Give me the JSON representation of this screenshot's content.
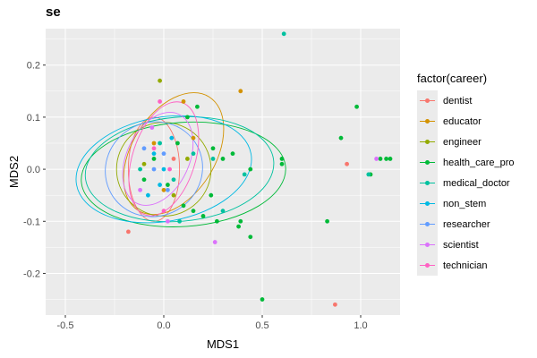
{
  "chart_data": {
    "type": "scatter",
    "title": "se",
    "xlabel": "MDS1",
    "ylabel": "MDS2",
    "xlim": [
      -0.6,
      1.2
    ],
    "ylim": [
      -0.28,
      0.27
    ],
    "x_ticks": [
      -0.5,
      0.0,
      0.5,
      1.0
    ],
    "x_tick_labels": [
      "-0.5",
      "0.0",
      "0.5",
      "1.0"
    ],
    "y_ticks": [
      -0.2,
      -0.1,
      0.0,
      0.1,
      0.2
    ],
    "y_tick_labels": [
      "-0.2",
      "-0.1",
      "0.0",
      "0.1",
      "0.2"
    ],
    "grid": true,
    "panel_background": "#ebebeb",
    "legend_title": "factor(career)",
    "legend_position": "right",
    "series": [
      {
        "name": "dentist",
        "color": "#F8766D",
        "points": [
          [
            0.93,
            0.01
          ],
          [
            0.87,
            -0.26
          ],
          [
            -0.18,
            -0.12
          ],
          [
            0.05,
            0.02
          ]
        ],
        "ellipse": {
          "cx": -0.05,
          "cy": 0.0,
          "rx": 0.13,
          "ry": 0.1,
          "angle": 0
        }
      },
      {
        "name": "educator",
        "color": "#D39200",
        "points": [
          [
            0.39,
            0.15
          ],
          [
            0.1,
            0.13
          ],
          [
            0.0,
            -0.04
          ],
          [
            0.15,
            0.06
          ],
          [
            -0.05,
            0.05
          ]
        ],
        "ellipse": {
          "cx": 0.05,
          "cy": 0.03,
          "rx": 0.34,
          "ry": 0.08,
          "angle": 58
        }
      },
      {
        "name": "engineer",
        "color": "#93AA00",
        "points": [
          [
            -0.02,
            0.17
          ],
          [
            0.12,
            0.02
          ],
          [
            0.05,
            -0.05
          ],
          [
            -0.1,
            0.01
          ]
        ],
        "ellipse": {
          "cx": 0.0,
          "cy": 0.0,
          "rx": 0.24,
          "ry": 0.09,
          "angle": 0
        }
      },
      {
        "name": "health_care_pro",
        "color": "#00BA38",
        "points": [
          [
            0.98,
            0.12
          ],
          [
            0.9,
            0.06
          ],
          [
            0.83,
            -0.1
          ],
          [
            0.5,
            -0.25
          ],
          [
            0.44,
            -0.13
          ],
          [
            0.44,
            0.0
          ],
          [
            0.6,
            0.01
          ],
          [
            0.6,
            0.02
          ],
          [
            0.3,
            0.02
          ],
          [
            0.24,
            -0.05
          ],
          [
            0.27,
            -0.1
          ],
          [
            0.39,
            -0.1
          ],
          [
            0.38,
            -0.11
          ],
          [
            0.2,
            -0.09
          ],
          [
            0.25,
            0.04
          ],
          [
            0.35,
            0.03
          ],
          [
            1.05,
            -0.01
          ],
          [
            1.1,
            0.02
          ],
          [
            1.13,
            0.02
          ],
          [
            1.15,
            0.02
          ],
          [
            0.17,
            0.12
          ],
          [
            0.12,
            0.1
          ],
          [
            0.1,
            -0.07
          ],
          [
            0.15,
            -0.08
          ],
          [
            -0.05,
            0.02
          ],
          [
            0.02,
            -0.03
          ],
          [
            0.07,
            0.05
          ],
          [
            -0.1,
            -0.02
          ]
        ],
        "ellipse": {
          "cx": 0.1,
          "cy": -0.01,
          "rx": 0.52,
          "ry": 0.1,
          "angle": 4
        }
      },
      {
        "name": "medical_doctor",
        "color": "#00C19F",
        "points": [
          [
            0.61,
            0.26
          ],
          [
            0.41,
            -0.01
          ],
          [
            0.3,
            -0.08
          ],
          [
            1.04,
            -0.01
          ],
          [
            0.25,
            0.02
          ],
          [
            -0.02,
            0.05
          ],
          [
            0.05,
            -0.02
          ],
          [
            -0.12,
            0.0
          ],
          [
            0.15,
            0.03
          ],
          [
            0.08,
            -0.1
          ]
        ],
        "ellipse": {
          "cx": 0.08,
          "cy": 0.0,
          "rx": 0.48,
          "ry": 0.1,
          "angle": 5
        }
      },
      {
        "name": "non_stem",
        "color": "#00B9E3",
        "points": [
          [
            0.0,
            0.0
          ],
          [
            -0.05,
            0.03
          ],
          [
            -0.08,
            -0.05
          ],
          [
            0.04,
            0.06
          ],
          [
            -0.02,
            -0.03
          ]
        ],
        "ellipse": {
          "cx": 0.0,
          "cy": 0.0,
          "rx": 0.45,
          "ry": 0.1,
          "angle": 10
        }
      },
      {
        "name": "researcher",
        "color": "#619CFF",
        "points": [
          [
            -0.05,
            0.0
          ],
          [
            0.02,
            -0.04
          ],
          [
            -0.1,
            0.04
          ],
          [
            0.0,
            0.03
          ]
        ],
        "ellipse": {
          "cx": -0.05,
          "cy": 0.0,
          "rx": 0.25,
          "ry": 0.09,
          "angle": 30
        }
      },
      {
        "name": "scientist",
        "color": "#DB72FB",
        "points": [
          [
            1.08,
            0.02
          ],
          [
            -0.06,
            0.08
          ],
          [
            0.02,
            -0.1
          ],
          [
            0.26,
            -0.14
          ],
          [
            -0.12,
            -0.04
          ]
        ],
        "ellipse": {
          "cx": -0.03,
          "cy": 0.02,
          "rx": 0.25,
          "ry": 0.06,
          "angle": 65
        }
      },
      {
        "name": "technician",
        "color": "#FF61C3",
        "points": [
          [
            -0.02,
            0.13
          ],
          [
            0.0,
            -0.08
          ],
          [
            -0.05,
            0.04
          ],
          [
            0.03,
            0.0
          ]
        ],
        "ellipse": {
          "cx": 0.0,
          "cy": 0.02,
          "rx": 0.3,
          "ry": 0.06,
          "angle": 72
        }
      }
    ]
  }
}
